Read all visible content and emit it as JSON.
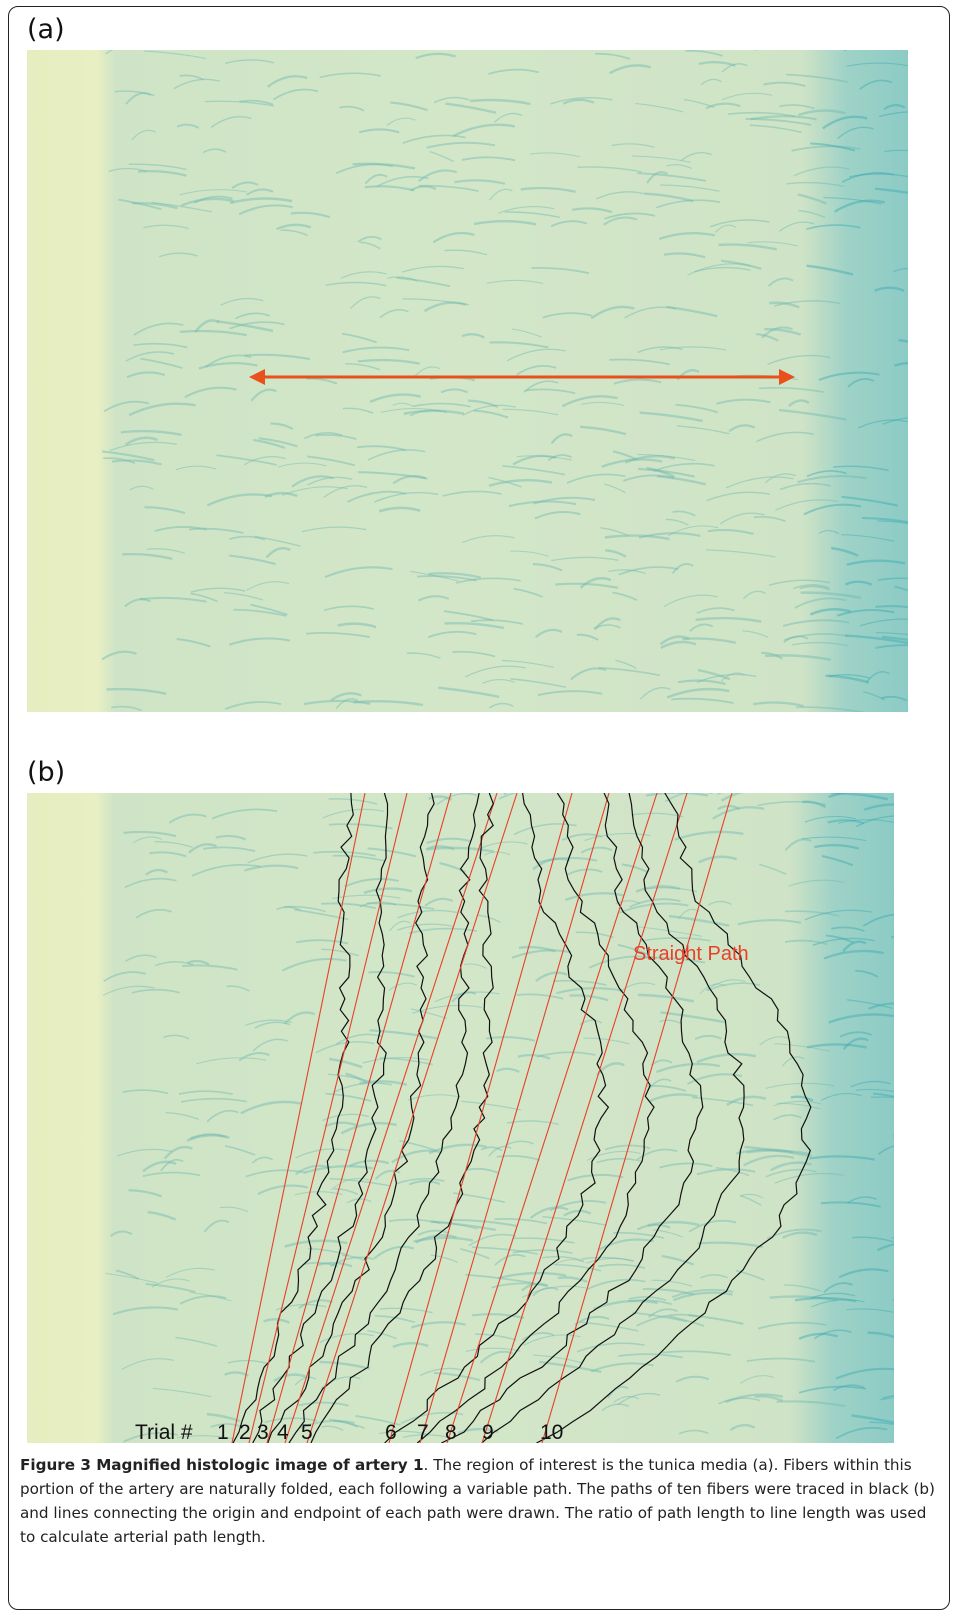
{
  "panels": [
    {
      "label": "(a)"
    },
    {
      "label": "(b)",
      "annotation": "Straight Path",
      "trial_label": "Trial #",
      "trials": [
        "1",
        "2",
        "3",
        "4",
        "5",
        "6",
        "7",
        "8",
        "9",
        "10"
      ]
    }
  ],
  "caption": {
    "title": "Figure 3 Magnified histologic image of artery 1",
    "text": ". The region of interest is the tunica media (a). Fibers within this portion of the artery are naturally folded, each following a variable path. The paths of ten fibers were traced in black (b) and lines connecting the origin and endpoint of each path were drawn. The ratio of path length to line length was used to calculate arterial path length."
  }
}
